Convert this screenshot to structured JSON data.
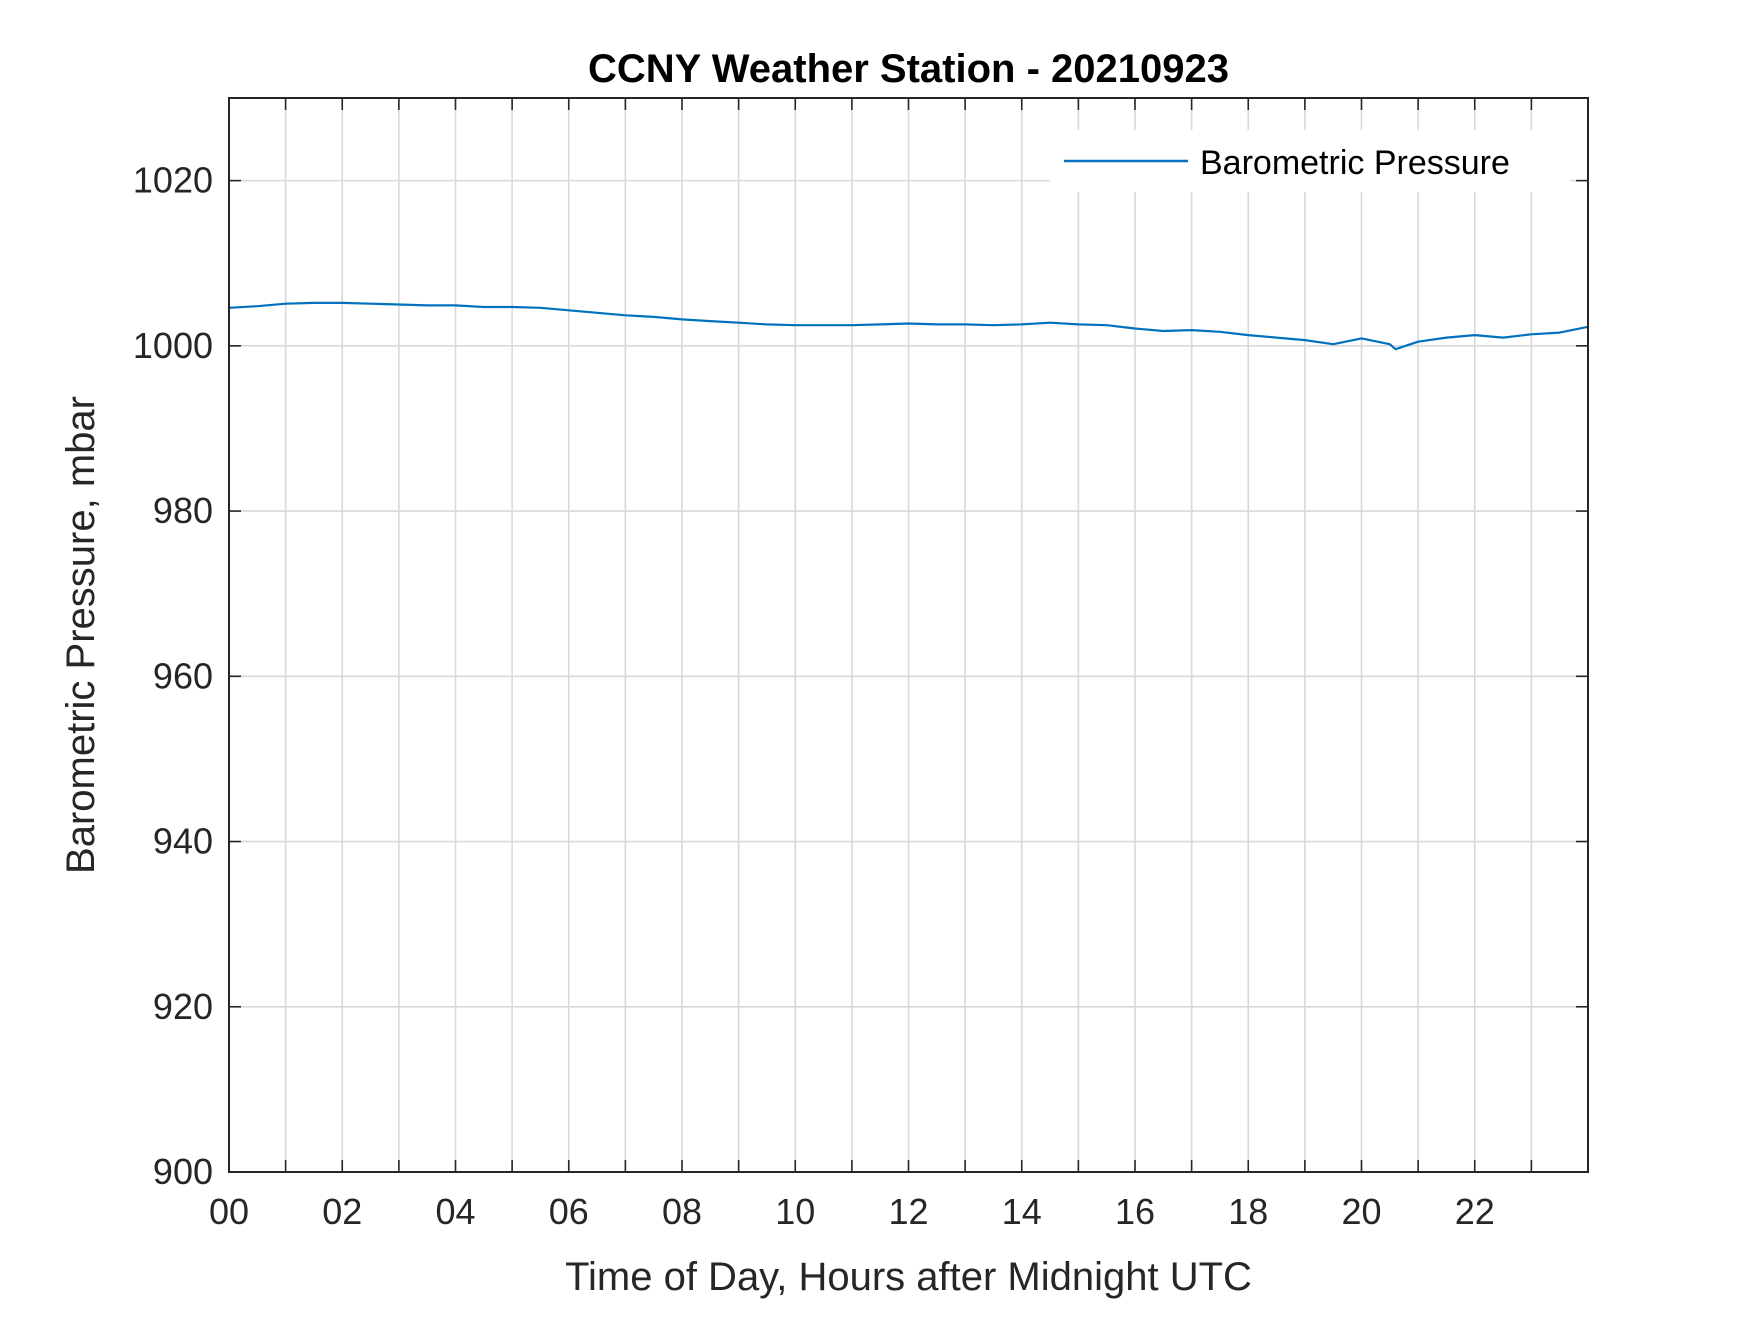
{
  "chart_data": {
    "type": "line",
    "title": "CCNY Weather Station - 20210923",
    "xlabel": "Time of Day, Hours after Midnight UTC",
    "ylabel": "Barometric Pressure, mbar",
    "xlim": [
      0,
      24
    ],
    "ylim": [
      900,
      1030
    ],
    "x_ticks": [
      "00",
      "02",
      "04",
      "06",
      "08",
      "10",
      "12",
      "14",
      "16",
      "18",
      "20",
      "22"
    ],
    "x_tick_values": [
      0,
      2,
      4,
      6,
      8,
      10,
      12,
      14,
      16,
      18,
      20,
      22
    ],
    "y_ticks": [
      900,
      920,
      940,
      960,
      980,
      1000,
      1020
    ],
    "grid": true,
    "legend_position": "top-right",
    "series": [
      {
        "name": "Barometric Pressure",
        "color": "#0072BD",
        "x": [
          0,
          0.5,
          1,
          1.5,
          2,
          2.5,
          3,
          3.5,
          4,
          4.5,
          5,
          5.5,
          6,
          6.5,
          7,
          7.5,
          8,
          8.5,
          9,
          9.5,
          10,
          10.5,
          11,
          11.5,
          12,
          12.5,
          13,
          13.5,
          14,
          14.5,
          15,
          15.5,
          16,
          16.5,
          17,
          17.5,
          18,
          18.5,
          19,
          19.5,
          20,
          20.5,
          20.6,
          21,
          21.5,
          22,
          22.5,
          23,
          23.5,
          24
        ],
        "y": [
          1004.6,
          1004.8,
          1005.1,
          1005.2,
          1005.2,
          1005.1,
          1005.0,
          1004.9,
          1004.9,
          1004.7,
          1004.7,
          1004.6,
          1004.3,
          1004.0,
          1003.7,
          1003.5,
          1003.2,
          1003.0,
          1002.8,
          1002.6,
          1002.5,
          1002.5,
          1002.5,
          1002.6,
          1002.7,
          1002.6,
          1002.6,
          1002.5,
          1002.6,
          1002.8,
          1002.6,
          1002.5,
          1002.1,
          1001.8,
          1001.9,
          1001.7,
          1001.3,
          1001.0,
          1000.7,
          1000.2,
          1000.9,
          1000.2,
          999.6,
          1000.5,
          1001.0,
          1001.3,
          1001.0,
          1001.4,
          1001.6,
          1002.3
        ]
      }
    ]
  }
}
